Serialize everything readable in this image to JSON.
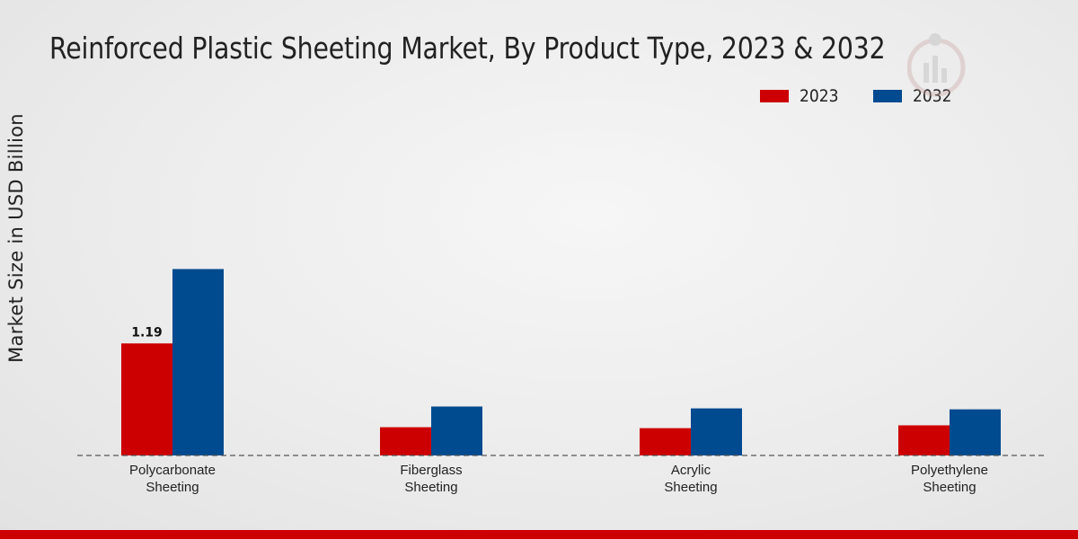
{
  "title": "Reinforced Plastic Sheeting Market, By Product Type, 2023 & 2032",
  "colors": {
    "2023": "#cc0000",
    "2032": "#004a8f",
    "accent_bar": "#cc0000"
  },
  "chart_data": {
    "type": "bar",
    "title": "Reinforced Plastic Sheeting Market, By Product Type, 2023 & 2032",
    "xlabel": "",
    "ylabel": "Market Size in USD Billion",
    "categories": [
      [
        "Polycarbonate",
        "Sheeting"
      ],
      [
        "Fiberglass",
        "Sheeting"
      ],
      [
        "Acrylic",
        "Sheeting"
      ],
      [
        "Polyethylene",
        "Sheeting"
      ]
    ],
    "series": [
      {
        "name": "2023",
        "color": "#cc0000",
        "values": [
          1.19,
          0.3,
          0.29,
          0.32
        ]
      },
      {
        "name": "2032",
        "color": "#004a8f",
        "values": [
          1.98,
          0.52,
          0.5,
          0.49
        ]
      }
    ],
    "data_labels": [
      {
        "series": 0,
        "index": 0,
        "text": "1.19"
      }
    ],
    "ylim": [
      0,
      2.5
    ],
    "legend_position": "top-right",
    "grid": false
  }
}
